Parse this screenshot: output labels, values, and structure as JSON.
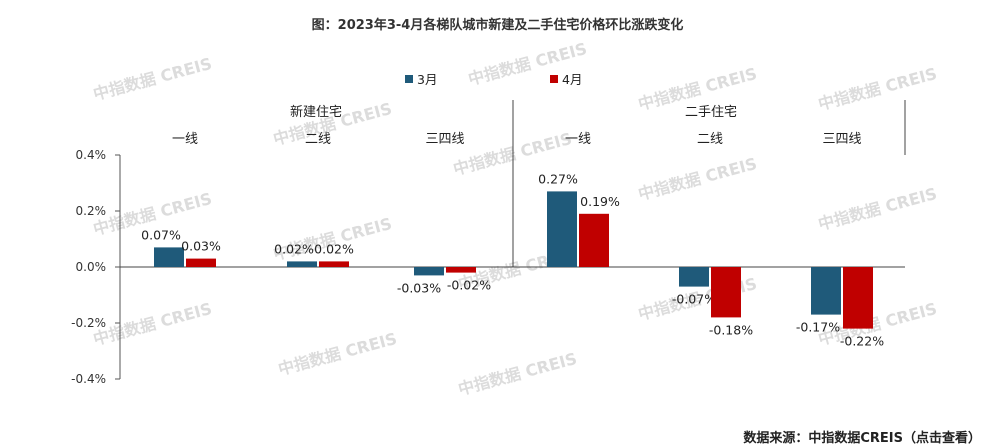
{
  "chart_data": {
    "type": "bar",
    "title": "图：2023年3-4月各梯队城市新建及二手住宅价格环比涨跌变化",
    "groups": [
      {
        "label": "新建住宅",
        "categories": [
          "一线",
          "二线",
          "三四线"
        ]
      },
      {
        "label": "二手住宅",
        "categories": [
          "一线",
          "二线",
          "三四线"
        ]
      }
    ],
    "categories": [
      "一线",
      "二线",
      "三四线",
      "一线",
      "二线",
      "三四线"
    ],
    "series": [
      {
        "name": "3月",
        "color": "#1f5a7a",
        "values": [
          0.07,
          0.02,
          -0.03,
          0.27,
          -0.07,
          -0.17
        ],
        "labels": [
          "0.07%",
          "0.02%",
          "-0.03%",
          "0.27%",
          "-0.07%",
          "-0.17%"
        ]
      },
      {
        "name": "4月",
        "color": "#c00000",
        "values": [
          0.03,
          0.02,
          -0.02,
          0.19,
          -0.18,
          -0.22
        ],
        "labels": [
          "0.03%",
          "0.02%",
          "-0.02%",
          "0.19%",
          "-0.18%",
          "-0.22%"
        ]
      }
    ],
    "ylim": [
      -0.4,
      0.4
    ],
    "yticks": [
      0.4,
      0.2,
      0.0,
      -0.2,
      -0.4
    ],
    "ytick_labels": [
      "0.4%",
      "0.2%",
      "0.0%",
      "-0.2%",
      "-0.4%"
    ],
    "legend_position": "top-center",
    "grid": false
  },
  "watermark": "中指数据 CREIS",
  "source": "数据来源：中指数据CREIS（点击查看）"
}
